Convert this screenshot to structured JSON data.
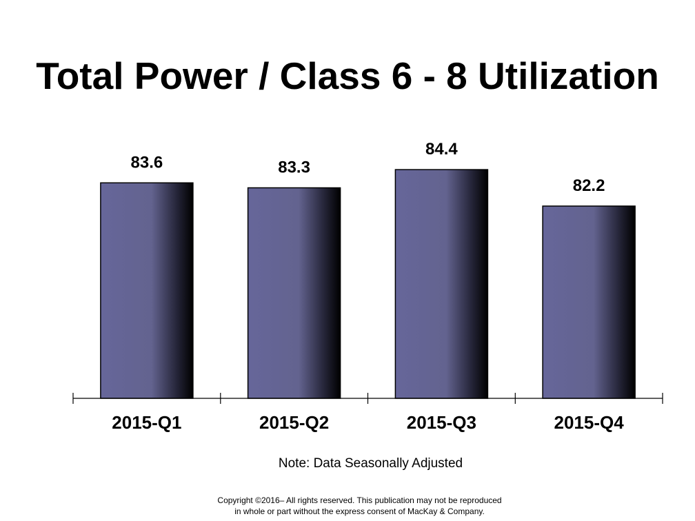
{
  "chart_data": {
    "type": "bar",
    "title": "Total Power / Class 6 - 8 Utilization",
    "categories": [
      "2015-Q1",
      "2015-Q2",
      "2015-Q3",
      "2015-Q4"
    ],
    "values": [
      83.6,
      83.3,
      84.4,
      82.2
    ],
    "data_labels": [
      "83.6",
      "83.3",
      "84.4",
      "82.2"
    ],
    "xlabel": "",
    "ylabel": "",
    "ylim": [
      70.6,
      85.9
    ],
    "grid": false,
    "legend": "none",
    "bar_colors": {
      "face": "#66669a",
      "shade": "#000000",
      "outline": "#000000"
    }
  },
  "note": "Note: Data Seasonally Adjusted",
  "copyright": {
    "line1": "Copyright ©2016– All rights reserved.  This publication may not be reproduced",
    "line2": "in whole or part without the express consent of MacKay & Company."
  }
}
